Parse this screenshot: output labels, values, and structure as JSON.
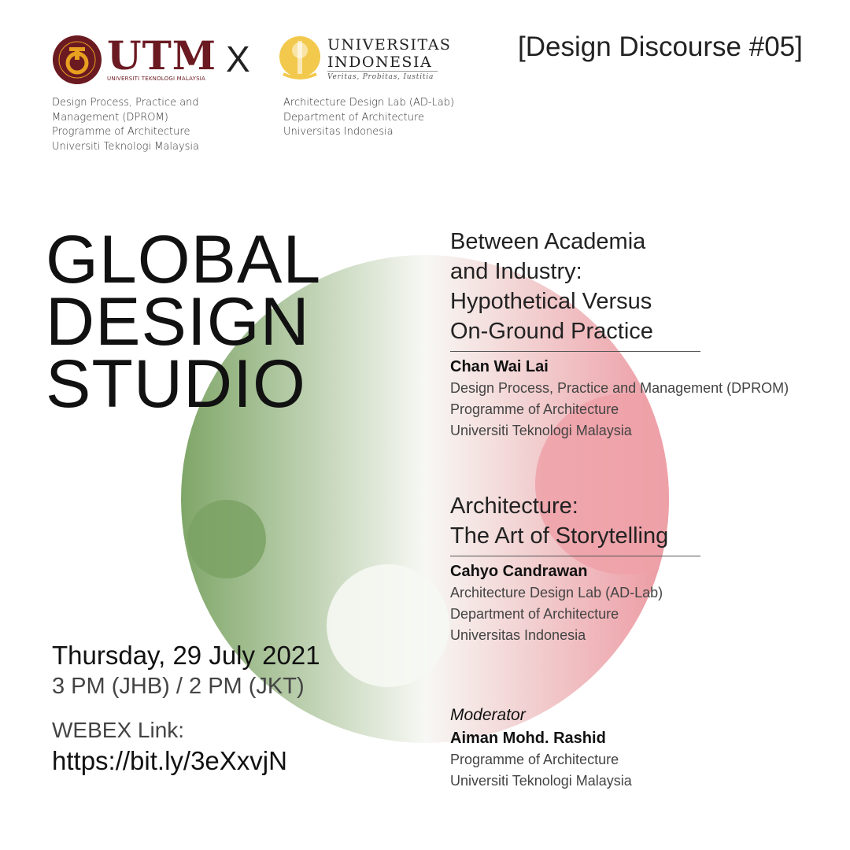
{
  "header": {
    "utm_logo": {
      "name": "UTM",
      "subtitle": "UNIVERSITI TEKNOLOGI MALAYSIA"
    },
    "separator": "X",
    "ui_logo": {
      "line1": "UNIVERSITAS",
      "line2": "INDONESIA",
      "motto": "Veritas, Probitas, Iustitia"
    },
    "series_tag": "[Design Discourse #05]",
    "utm_affiliation": [
      "Design Process, Practice and",
      "Management (DPROM)",
      "Programme of Architecture",
      "Universiti Teknologi Malaysia"
    ],
    "ui_affiliation": [
      "Architecture Design Lab (AD-Lab)",
      "Department of Architecture",
      "Universitas Indonesia"
    ]
  },
  "title": [
    "GLOBAL",
    "DESIGN",
    "STUDIO"
  ],
  "event": {
    "date": "Thursday, 29 July 2021",
    "time": "3 PM (JHB) / 2 PM (JKT)",
    "link_label": "WEBEX Link:",
    "link": "https://bit.ly/3eXxvjN"
  },
  "talks": [
    {
      "title": [
        "Between Academia",
        "and Industry:",
        "Hypothetical Versus",
        "On-Ground Practice"
      ],
      "speaker": "Chan Wai Lai",
      "affiliation": [
        "Design Process, Practice and Management (DPROM)",
        "Programme of Architecture",
        "Universiti Teknologi Malaysia"
      ]
    },
    {
      "title": [
        "Architecture:",
        "The Art of Storytelling"
      ],
      "speaker": "Cahyo Candrawan",
      "affiliation": [
        "Architecture Design Lab (AD-Lab)",
        "Department of Architecture",
        "Universitas Indonesia"
      ]
    }
  ],
  "moderator": {
    "label": "Moderator",
    "name": "Aiman Mohd. Rashid",
    "affiliation": [
      "Programme of Architecture",
      "Universiti Teknologi Malaysia"
    ]
  },
  "colors": {
    "green": "#7fa668",
    "pink": "#ee9aa2",
    "utm_maroon": "#6b1a22",
    "utm_gold": "#e8a020",
    "ui_gold": "#f2c94c"
  }
}
